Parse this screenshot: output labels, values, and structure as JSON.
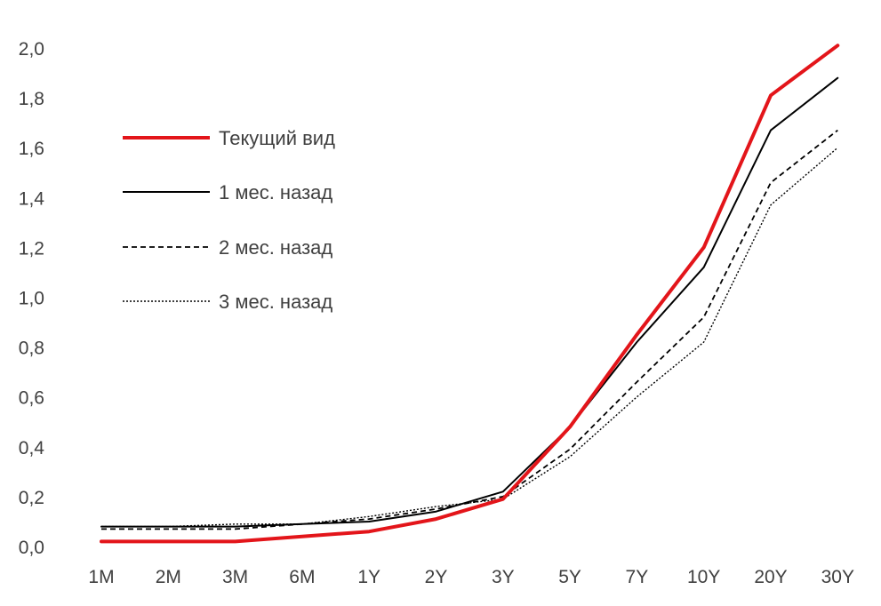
{
  "chart_data": {
    "type": "line",
    "title": "",
    "xlabel": "",
    "ylabel": "",
    "categories": [
      "1M",
      "2M",
      "3M",
      "6M",
      "1Y",
      "2Y",
      "3Y",
      "5Y",
      "7Y",
      "10Y",
      "20Y",
      "30Y"
    ],
    "y_ticks": [
      "0,0",
      "0,2",
      "0,4",
      "0,6",
      "0,8",
      "1,0",
      "1,2",
      "1,4",
      "1,6",
      "1,8",
      "2,0"
    ],
    "ylim": [
      0,
      2.0
    ],
    "grid": false,
    "legend_position": "top-left",
    "series": [
      {
        "name": "Текущий вид",
        "color": "#e3151a",
        "style": "solid-thick",
        "values": [
          0.02,
          0.02,
          0.02,
          0.04,
          0.06,
          0.11,
          0.19,
          0.48,
          0.85,
          1.2,
          1.81,
          2.01
        ]
      },
      {
        "name": "1 мес. назад",
        "color": "#000000",
        "style": "solid",
        "values": [
          0.08,
          0.08,
          0.08,
          0.09,
          0.1,
          0.14,
          0.22,
          0.48,
          0.82,
          1.12,
          1.67,
          1.88
        ]
      },
      {
        "name": "2 мес. назад",
        "color": "#000000",
        "style": "dashed",
        "values": [
          0.07,
          0.07,
          0.07,
          0.09,
          0.11,
          0.15,
          0.2,
          0.39,
          0.66,
          0.92,
          1.46,
          1.67
        ]
      },
      {
        "name": "3 мес. назад",
        "color": "#000000",
        "style": "dotted",
        "values": [
          0.08,
          0.08,
          0.09,
          0.09,
          0.12,
          0.16,
          0.19,
          0.36,
          0.6,
          0.82,
          1.37,
          1.6
        ]
      }
    ]
  }
}
